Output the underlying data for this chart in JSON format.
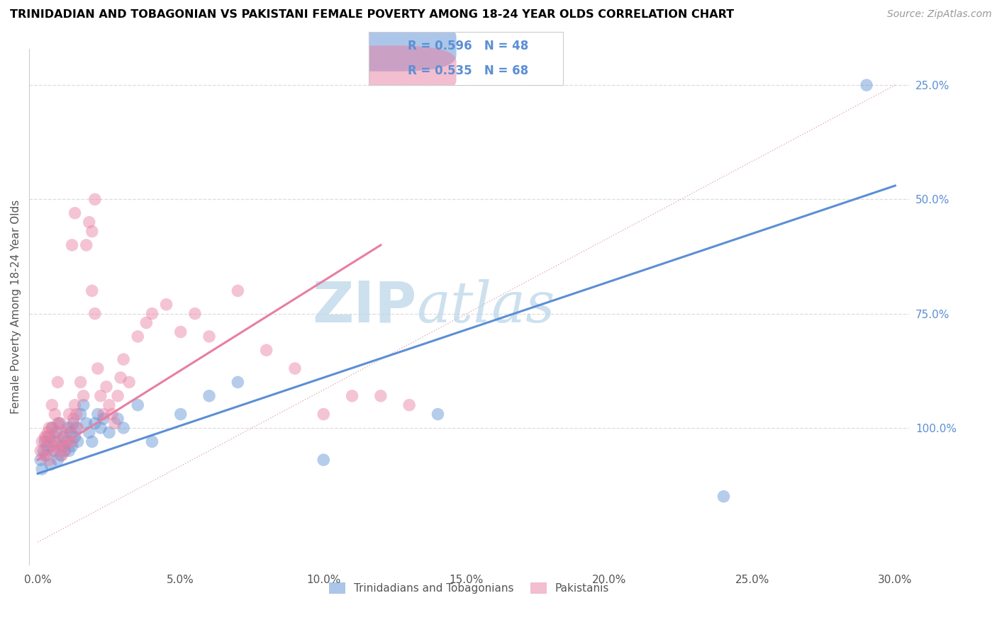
{
  "title": "TRINIDADIAN AND TOBAGONIAN VS PAKISTANI FEMALE POVERTY AMONG 18-24 YEAR OLDS CORRELATION CHART",
  "source": "Source: ZipAtlas.com",
  "xlabel_ticks": [
    "0.0%",
    "5.0%",
    "10.0%",
    "15.0%",
    "20.0%",
    "25.0%",
    "30.0%"
  ],
  "xlabel_vals": [
    0.0,
    5.0,
    10.0,
    15.0,
    20.0,
    25.0,
    30.0
  ],
  "ylabel_ticks_right": [
    "100.0%",
    "75.0%",
    "50.0%",
    "25.0%"
  ],
  "ylabel_vals_right": [
    100.0,
    75.0,
    50.0,
    25.0
  ],
  "ylabel_label": "Female Poverty Among 18-24 Year Olds",
  "xlim": [
    0.0,
    30.0
  ],
  "ylim": [
    0.0,
    100.0
  ],
  "blue_R": 0.596,
  "blue_N": 48,
  "pink_R": 0.535,
  "pink_N": 68,
  "blue_color": "#5B8FD4",
  "pink_color": "#E87EA1",
  "blue_label": "Trinidadians and Tobagonians",
  "pink_label": "Pakistanis",
  "blue_trend_x0": 0.0,
  "blue_trend_y0": 15.0,
  "blue_trend_x1": 30.0,
  "blue_trend_y1": 78.0,
  "pink_trend_x0": 0.0,
  "pink_trend_y0": 18.0,
  "pink_trend_x1": 12.0,
  "pink_trend_y1": 65.0,
  "ref_line_color": "#DDAAAA",
  "ref_line_style": "dotted",
  "watermark_text": "ZIPatlas",
  "watermark_color": "#B8D4E8",
  "grid_color": "#DDDDDD",
  "blue_scatter_x": [
    0.1,
    0.15,
    0.2,
    0.25,
    0.3,
    0.35,
    0.4,
    0.45,
    0.5,
    0.55,
    0.6,
    0.65,
    0.7,
    0.75,
    0.8,
    0.85,
    0.9,
    0.95,
    1.0,
    1.05,
    1.1,
    1.15,
    1.2,
    1.25,
    1.3,
    1.35,
    1.4,
    1.5,
    1.6,
    1.7,
    1.8,
    1.9,
    2.0,
    2.1,
    2.2,
    2.3,
    2.5,
    2.8,
    3.0,
    3.5,
    4.0,
    5.0,
    6.0,
    7.0,
    10.0,
    14.0,
    24.0,
    29.0
  ],
  "blue_scatter_y": [
    18,
    16,
    20,
    22,
    19,
    21,
    23,
    17,
    25,
    20,
    22,
    24,
    18,
    26,
    19,
    21,
    23,
    20,
    22,
    25,
    20,
    24,
    21,
    26,
    23,
    25,
    22,
    28,
    30,
    26,
    24,
    22,
    26,
    28,
    25,
    27,
    24,
    27,
    25,
    30,
    22,
    28,
    32,
    35,
    18,
    28,
    10,
    100
  ],
  "pink_scatter_x": [
    0.1,
    0.15,
    0.2,
    0.25,
    0.3,
    0.35,
    0.4,
    0.45,
    0.5,
    0.55,
    0.6,
    0.65,
    0.7,
    0.75,
    0.8,
    0.85,
    0.9,
    0.95,
    1.0,
    1.05,
    1.1,
    1.15,
    1.2,
    1.25,
    1.3,
    1.35,
    1.4,
    1.5,
    1.6,
    1.7,
    1.8,
    1.9,
    2.0,
    2.1,
    2.2,
    2.3,
    2.4,
    2.5,
    2.6,
    2.7,
    2.8,
    2.9,
    3.0,
    3.2,
    3.5,
    3.8,
    4.0,
    4.5,
    5.0,
    5.5,
    6.0,
    7.0,
    8.0,
    9.0,
    10.0,
    11.0,
    12.0,
    13.0,
    1.2,
    1.3,
    2.0,
    1.9,
    0.5,
    0.7,
    0.3,
    0.4,
    0.6,
    0.8
  ],
  "pink_scatter_y": [
    20,
    22,
    19,
    23,
    21,
    24,
    18,
    22,
    25,
    21,
    23,
    20,
    26,
    22,
    24,
    19,
    21,
    20,
    24,
    22,
    28,
    25,
    22,
    27,
    30,
    28,
    25,
    35,
    32,
    65,
    70,
    68,
    75,
    38,
    32,
    28,
    34,
    30,
    28,
    26,
    32,
    36,
    40,
    35,
    45,
    48,
    50,
    52,
    46,
    50,
    45,
    55,
    42,
    38,
    28,
    32,
    32,
    30,
    65,
    72,
    50,
    55,
    30,
    35,
    23,
    25,
    28,
    26
  ]
}
